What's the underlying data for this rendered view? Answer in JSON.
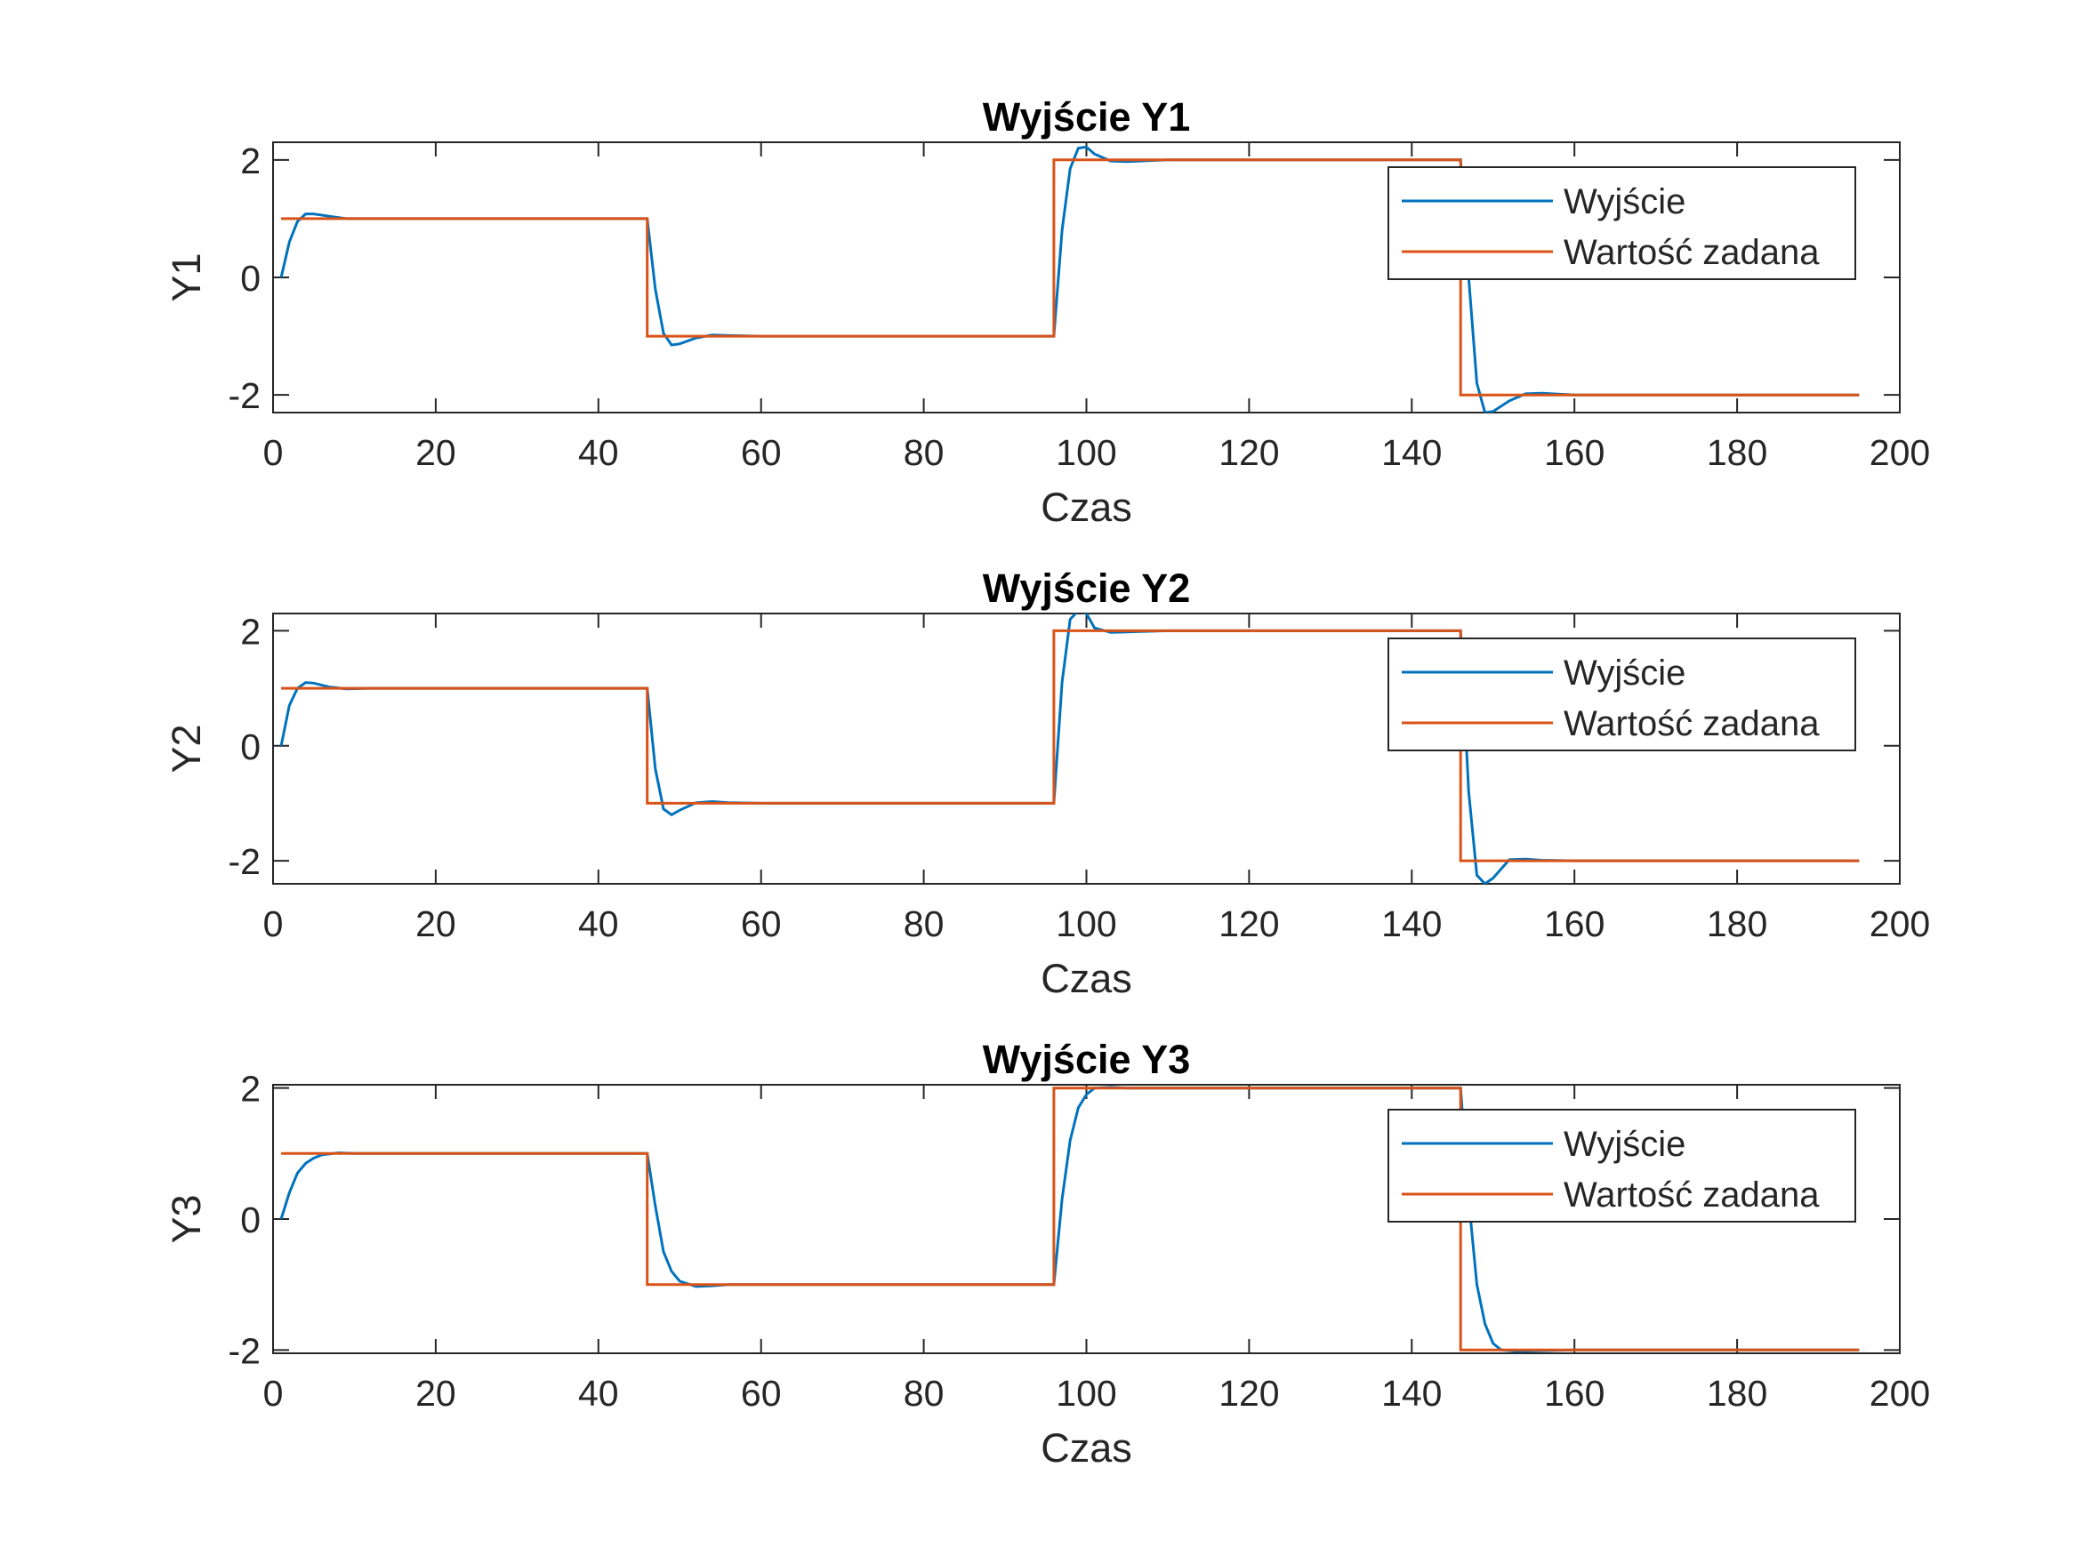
{
  "colors": {
    "output": "#0072BD",
    "setpoint": "#D95319",
    "axes": "#262626",
    "background": "#ffffff"
  },
  "chart_data": [
    {
      "type": "line",
      "title": "Wyjście Y1",
      "xlabel": "Czas",
      "ylabel": "Y1",
      "xlim": [
        0,
        200
      ],
      "ylim": [
        -2.3,
        2.3
      ],
      "xticks": [
        "0",
        "20",
        "40",
        "60",
        "80",
        "100",
        "120",
        "140",
        "160",
        "180",
        "200"
      ],
      "yticks": [
        "-2",
        "0",
        "2"
      ],
      "legend_position": "top-right",
      "series": [
        {
          "name": "Wyjście",
          "color": "#0072BD",
          "points": [
            [
              1,
              0
            ],
            [
              2,
              0.6
            ],
            [
              3,
              0.95
            ],
            [
              4,
              1.08
            ],
            [
              5,
              1.08
            ],
            [
              7,
              1.04
            ],
            [
              9,
              1.0
            ],
            [
              12,
              1.0
            ],
            [
              46,
              1.0
            ],
            [
              47,
              -0.2
            ],
            [
              48,
              -0.95
            ],
            [
              49,
              -1.15
            ],
            [
              50,
              -1.13
            ],
            [
              52,
              -1.03
            ],
            [
              54,
              -0.98
            ],
            [
              56,
              -0.99
            ],
            [
              60,
              -1.0
            ],
            [
              96,
              -1.0
            ],
            [
              97,
              0.8
            ],
            [
              98,
              1.85
            ],
            [
              99,
              2.2
            ],
            [
              100,
              2.22
            ],
            [
              101,
              2.1
            ],
            [
              103,
              1.98
            ],
            [
              105,
              1.97
            ],
            [
              110,
              2.0
            ],
            [
              146,
              2.0
            ],
            [
              147,
              0.0
            ],
            [
              148,
              -1.8
            ],
            [
              149,
              -2.3
            ],
            [
              150,
              -2.28
            ],
            [
              152,
              -2.1
            ],
            [
              154,
              -1.98
            ],
            [
              156,
              -1.97
            ],
            [
              160,
              -2.0
            ],
            [
              195,
              -2.0
            ]
          ]
        },
        {
          "name": "Wartość zadana",
          "color": "#D95319",
          "points": [
            [
              1,
              1
            ],
            [
              46,
              1
            ],
            [
              46,
              -1
            ],
            [
              96,
              -1
            ],
            [
              96,
              2
            ],
            [
              146,
              2
            ],
            [
              146,
              -2
            ],
            [
              195,
              -2
            ]
          ]
        }
      ]
    },
    {
      "type": "line",
      "title": "Wyjście Y2",
      "xlabel": "Czas",
      "ylabel": "Y2",
      "xlim": [
        0,
        200
      ],
      "ylim": [
        -2.4,
        2.3
      ],
      "xticks": [
        "0",
        "20",
        "40",
        "60",
        "80",
        "100",
        "120",
        "140",
        "160",
        "180",
        "200"
      ],
      "yticks": [
        "-2",
        "0",
        "2"
      ],
      "legend_position": "top-right",
      "series": [
        {
          "name": "Wyjście",
          "color": "#0072BD",
          "points": [
            [
              1,
              0
            ],
            [
              2,
              0.7
            ],
            [
              3,
              1.0
            ],
            [
              4,
              1.1
            ],
            [
              5,
              1.09
            ],
            [
              7,
              1.02
            ],
            [
              9,
              0.99
            ],
            [
              12,
              1.0
            ],
            [
              46,
              1.0
            ],
            [
              47,
              -0.4
            ],
            [
              48,
              -1.1
            ],
            [
              49,
              -1.2
            ],
            [
              50,
              -1.12
            ],
            [
              52,
              -0.99
            ],
            [
              54,
              -0.97
            ],
            [
              56,
              -0.99
            ],
            [
              60,
              -1.0
            ],
            [
              96,
              -1.0
            ],
            [
              97,
              1.1
            ],
            [
              98,
              2.2
            ],
            [
              99,
              2.35
            ],
            [
              100,
              2.3
            ],
            [
              101,
              2.05
            ],
            [
              103,
              1.97
            ],
            [
              105,
              1.98
            ],
            [
              110,
              2.0
            ],
            [
              146,
              2.0
            ],
            [
              147,
              -0.8
            ],
            [
              148,
              -2.25
            ],
            [
              149,
              -2.4
            ],
            [
              150,
              -2.3
            ],
            [
              152,
              -1.98
            ],
            [
              154,
              -1.97
            ],
            [
              156,
              -1.99
            ],
            [
              160,
              -2.0
            ],
            [
              195,
              -2.0
            ]
          ]
        },
        {
          "name": "Wartość zadana",
          "color": "#D95319",
          "points": [
            [
              1,
              1
            ],
            [
              46,
              1
            ],
            [
              46,
              -1
            ],
            [
              96,
              -1
            ],
            [
              96,
              2
            ],
            [
              146,
              2
            ],
            [
              146,
              -2
            ],
            [
              195,
              -2
            ]
          ]
        }
      ]
    },
    {
      "type": "line",
      "title": "Wyjście Y3",
      "xlabel": "Czas",
      "ylabel": "Y3",
      "xlim": [
        0,
        200
      ],
      "ylim": [
        -2.05,
        2.05
      ],
      "xticks": [
        "0",
        "20",
        "40",
        "60",
        "80",
        "100",
        "120",
        "140",
        "160",
        "180",
        "200"
      ],
      "yticks": [
        "-2",
        "0",
        "2"
      ],
      "legend_position": "top-right",
      "series": [
        {
          "name": "Wyjście",
          "color": "#0072BD",
          "points": [
            [
              1,
              0
            ],
            [
              2,
              0.4
            ],
            [
              3,
              0.7
            ],
            [
              4,
              0.85
            ],
            [
              5,
              0.93
            ],
            [
              6,
              0.98
            ],
            [
              8,
              1.01
            ],
            [
              10,
              1.0
            ],
            [
              46,
              1.0
            ],
            [
              47,
              0.2
            ],
            [
              48,
              -0.5
            ],
            [
              49,
              -0.8
            ],
            [
              50,
              -0.95
            ],
            [
              52,
              -1.03
            ],
            [
              54,
              -1.02
            ],
            [
              56,
              -1.0
            ],
            [
              60,
              -1.0
            ],
            [
              96,
              -1.0
            ],
            [
              97,
              0.3
            ],
            [
              98,
              1.2
            ],
            [
              99,
              1.7
            ],
            [
              100,
              1.9
            ],
            [
              101,
              2.0
            ],
            [
              103,
              2.01
            ],
            [
              105,
              2.0
            ],
            [
              146,
              2.0
            ],
            [
              147,
              0.3
            ],
            [
              148,
              -1.0
            ],
            [
              149,
              -1.6
            ],
            [
              150,
              -1.9
            ],
            [
              151,
              -2.0
            ],
            [
              153,
              -2.02
            ],
            [
              156,
              -2.01
            ],
            [
              160,
              -2.0
            ],
            [
              195,
              -2.0
            ]
          ]
        },
        {
          "name": "Wartość zadana",
          "color": "#D95319",
          "points": [
            [
              1,
              1
            ],
            [
              46,
              1
            ],
            [
              46,
              -1
            ],
            [
              96,
              -1
            ],
            [
              96,
              2
            ],
            [
              146,
              2
            ],
            [
              146,
              -2
            ],
            [
              195,
              -2
            ]
          ]
        }
      ]
    }
  ]
}
